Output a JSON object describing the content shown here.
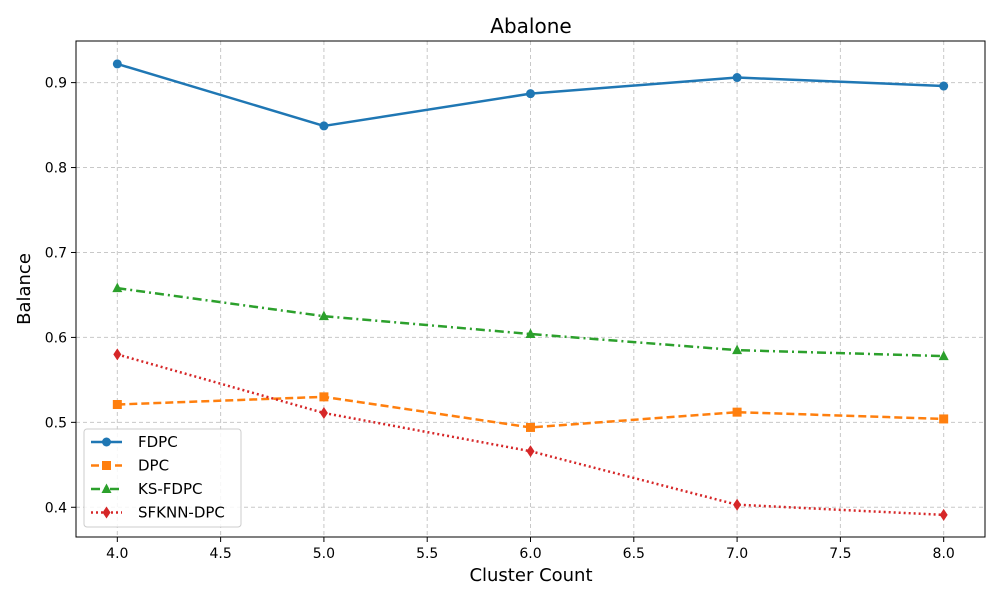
{
  "chart_data": {
    "type": "line",
    "title": "Abalone",
    "xlabel": "Cluster Count",
    "ylabel": "Balance",
    "x": [
      4.0,
      5.0,
      6.0,
      7.0,
      8.0
    ],
    "xlim": [
      3.8,
      8.2
    ],
    "ylim": [
      0.365,
      0.949
    ],
    "x_ticks": [
      4.0,
      4.5,
      5.0,
      5.5,
      6.0,
      6.5,
      7.0,
      7.5,
      8.0
    ],
    "y_ticks": [
      0.4,
      0.5,
      0.6,
      0.7,
      0.8,
      0.9
    ],
    "x_tick_labels": [
      "4.0",
      "4.5",
      "5.0",
      "5.5",
      "6.0",
      "6.5",
      "7.0",
      "7.5",
      "8.0"
    ],
    "y_tick_labels": [
      "0.4",
      "0.5",
      "0.6",
      "0.7",
      "0.8",
      "0.9"
    ],
    "grid": true,
    "legend_position": "lower-left",
    "series": [
      {
        "name": "FDPC",
        "values": [
          0.922,
          0.849,
          0.887,
          0.906,
          0.896
        ],
        "color": "#1f77b4",
        "linestyle": "solid",
        "marker": "circle"
      },
      {
        "name": "DPC",
        "values": [
          0.521,
          0.53,
          0.494,
          0.512,
          0.504
        ],
        "color": "#ff7f0e",
        "linestyle": "dashed",
        "marker": "square"
      },
      {
        "name": "KS-FDPC",
        "values": [
          0.658,
          0.625,
          0.604,
          0.585,
          0.578
        ],
        "color": "#2ca02c",
        "linestyle": "dashdot",
        "marker": "triangle"
      },
      {
        "name": "SFKNN-DPC",
        "values": [
          0.58,
          0.511,
          0.466,
          0.403,
          0.391
        ],
        "color": "#d62728",
        "linestyle": "dotted",
        "marker": "diamond"
      }
    ]
  }
}
